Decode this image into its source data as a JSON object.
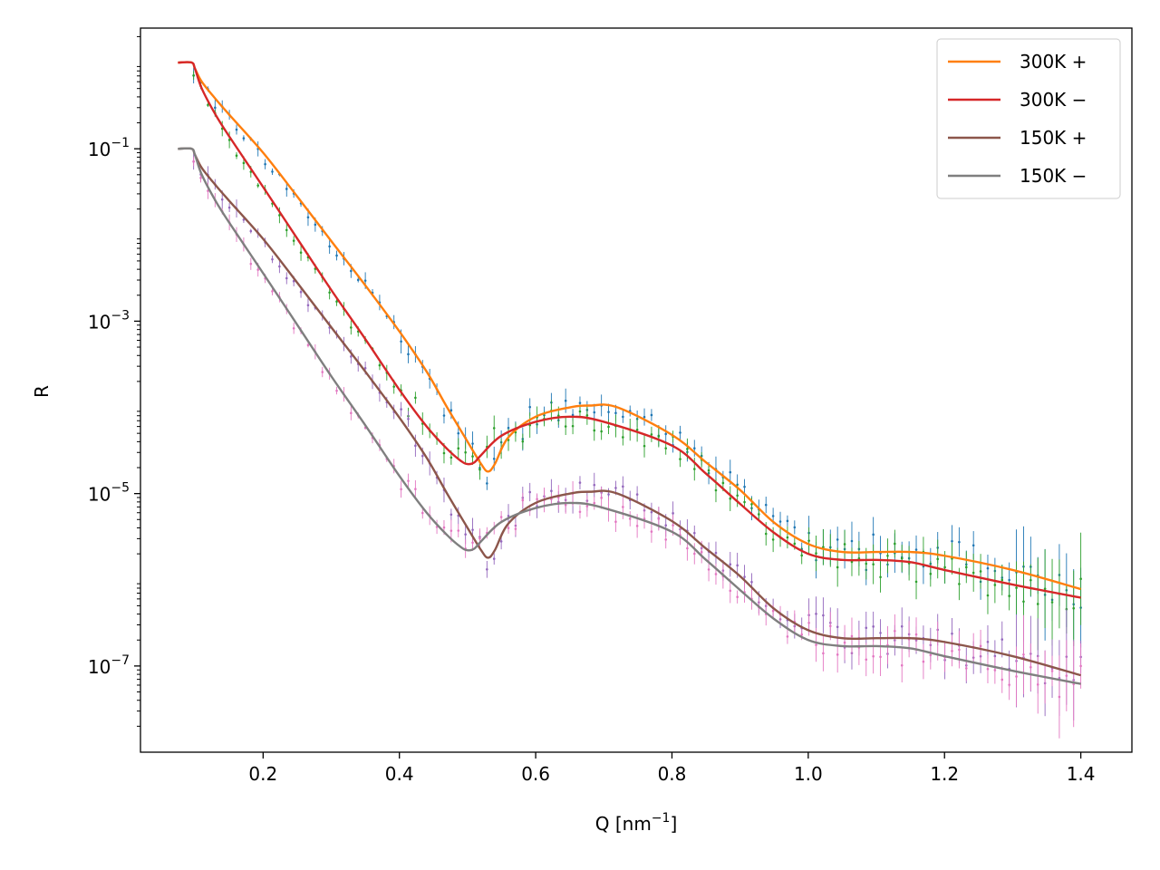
{
  "chart_data": {
    "type": "line",
    "xlabel_main": "Q [nm",
    "xlabel_sup": "−1",
    "xlabel_end": "]",
    "ylabel": "R",
    "xlim": [
      0.02,
      1.475
    ],
    "ylim_log10": [
      -8.0,
      0.4
    ],
    "y_scale": "log",
    "grid": false,
    "legend_position": "top-right",
    "x_ticks": [
      {
        "value": 0.2,
        "label": "0.2"
      },
      {
        "value": 0.4,
        "label": "0.4"
      },
      {
        "value": 0.6,
        "label": "0.6"
      },
      {
        "value": 0.8,
        "label": "0.8"
      },
      {
        "value": 1.0,
        "label": "1.0"
      },
      {
        "value": 1.2,
        "label": "1.2"
      },
      {
        "value": 1.4,
        "label": "1.4"
      }
    ],
    "y_ticks": [
      {
        "value": 0.1,
        "base": "10",
        "exp": "−1"
      },
      {
        "value": 0.001,
        "base": "10",
        "exp": "−3"
      },
      {
        "value": 1e-05,
        "base": "10",
        "exp": "−5"
      },
      {
        "value": 1e-07,
        "base": "10",
        "exp": "−7"
      }
    ],
    "series": [
      {
        "name": "300K +",
        "color": "#ff7f0e",
        "x": [
          0.075,
          0.095,
          0.1,
          0.11,
          0.13,
          0.15,
          0.2,
          0.25,
          0.3,
          0.35,
          0.4,
          0.44,
          0.47,
          0.5,
          0.52,
          0.53,
          0.54,
          0.56,
          0.6,
          0.65,
          0.68,
          0.72,
          0.8,
          0.85,
          0.9,
          0.95,
          1.0,
          1.05,
          1.1,
          1.15,
          1.2,
          1.3,
          1.4
        ],
        "y": [
          1.0,
          1.0,
          0.85,
          0.6,
          0.38,
          0.25,
          0.09,
          0.028,
          0.0085,
          0.0026,
          0.00076,
          0.00026,
          0.0001,
          4e-05,
          2.2e-05,
          1.8e-05,
          2.2e-05,
          4.5e-05,
          7.8e-05,
          0.0001,
          0.000105,
          0.0001,
          4.8e-05,
          2.3e-05,
          1.1e-05,
          4.6e-06,
          2.6e-06,
          2.1e-06,
          2.1e-06,
          2.1e-06,
          1.9e-06,
          1.3e-06,
          7.8e-07
        ]
      },
      {
        "name": "300K −",
        "color": "#d62728",
        "x": [
          0.075,
          0.095,
          0.1,
          0.11,
          0.13,
          0.15,
          0.2,
          0.25,
          0.3,
          0.35,
          0.4,
          0.44,
          0.47,
          0.49,
          0.5,
          0.51,
          0.52,
          0.55,
          0.6,
          0.65,
          0.7,
          0.8,
          0.85,
          0.9,
          0.95,
          1.0,
          1.05,
          1.1,
          1.15,
          1.2,
          1.3,
          1.4
        ],
        "y": [
          1.0,
          1.0,
          0.85,
          0.5,
          0.25,
          0.14,
          0.036,
          0.0091,
          0.0023,
          0.00062,
          0.00016,
          6e-05,
          3.3e-05,
          2.4e-05,
          2.2e-05,
          2.3e-05,
          2.8e-05,
          4.7e-05,
          6.8e-05,
          7.8e-05,
          6.8e-05,
          3.6e-05,
          1.7e-05,
          7.6e-06,
          3.5e-06,
          2e-06,
          1.7e-06,
          1.7e-06,
          1.6e-06,
          1.3e-06,
          8.8e-07,
          6.2e-07
        ]
      },
      {
        "name": "150K +",
        "color": "#8c564b",
        "x": [
          0.075,
          0.095,
          0.1,
          0.11,
          0.13,
          0.15,
          0.2,
          0.25,
          0.3,
          0.35,
          0.4,
          0.44,
          0.47,
          0.5,
          0.52,
          0.53,
          0.54,
          0.56,
          0.6,
          0.65,
          0.68,
          0.72,
          0.8,
          0.85,
          0.9,
          0.95,
          1.0,
          1.05,
          1.1,
          1.15,
          1.2,
          1.3,
          1.4
        ],
        "y": [
          0.1,
          0.1,
          0.085,
          0.06,
          0.038,
          0.025,
          0.009,
          0.0028,
          0.00085,
          0.00026,
          7.6e-05,
          2.6e-05,
          1e-05,
          4e-06,
          2.2e-06,
          1.8e-06,
          2.2e-06,
          4.5e-06,
          7.8e-06,
          1e-05,
          1.05e-05,
          1e-05,
          4.8e-06,
          2.3e-06,
          1.1e-06,
          4.6e-07,
          2.6e-07,
          2.1e-07,
          2.1e-07,
          2.1e-07,
          1.9e-07,
          1.3e-07,
          7.8e-08
        ]
      },
      {
        "name": "150K −",
        "color": "#7f7f7f",
        "x": [
          0.075,
          0.095,
          0.1,
          0.11,
          0.13,
          0.15,
          0.2,
          0.25,
          0.3,
          0.35,
          0.4,
          0.44,
          0.47,
          0.49,
          0.5,
          0.51,
          0.52,
          0.55,
          0.6,
          0.65,
          0.7,
          0.8,
          0.85,
          0.9,
          0.95,
          1.0,
          1.05,
          1.1,
          1.15,
          1.2,
          1.3,
          1.4
        ],
        "y": [
          0.1,
          0.1,
          0.085,
          0.05,
          0.025,
          0.014,
          0.0036,
          0.00091,
          0.00023,
          6.2e-05,
          1.6e-05,
          6e-06,
          3.3e-06,
          2.4e-06,
          2.2e-06,
          2.3e-06,
          2.8e-06,
          4.7e-06,
          6.8e-06,
          7.8e-06,
          6.8e-06,
          3.6e-06,
          1.7e-06,
          7.6e-07,
          3.5e-07,
          2e-07,
          1.7e-07,
          1.7e-07,
          1.6e-07,
          1.3e-07,
          8.8e-08,
          6.2e-08
        ]
      }
    ],
    "data_points": [
      {
        "follows": "300K +",
        "color": "#1f77b4",
        "offset_seed": 1
      },
      {
        "follows": "300K −",
        "color": "#2ca02c",
        "offset_seed": 2
      },
      {
        "follows": "150K +",
        "color": "#9467bd",
        "offset_seed": 3
      },
      {
        "follows": "150K −",
        "color": "#e377c2",
        "offset_seed": 4
      }
    ]
  }
}
